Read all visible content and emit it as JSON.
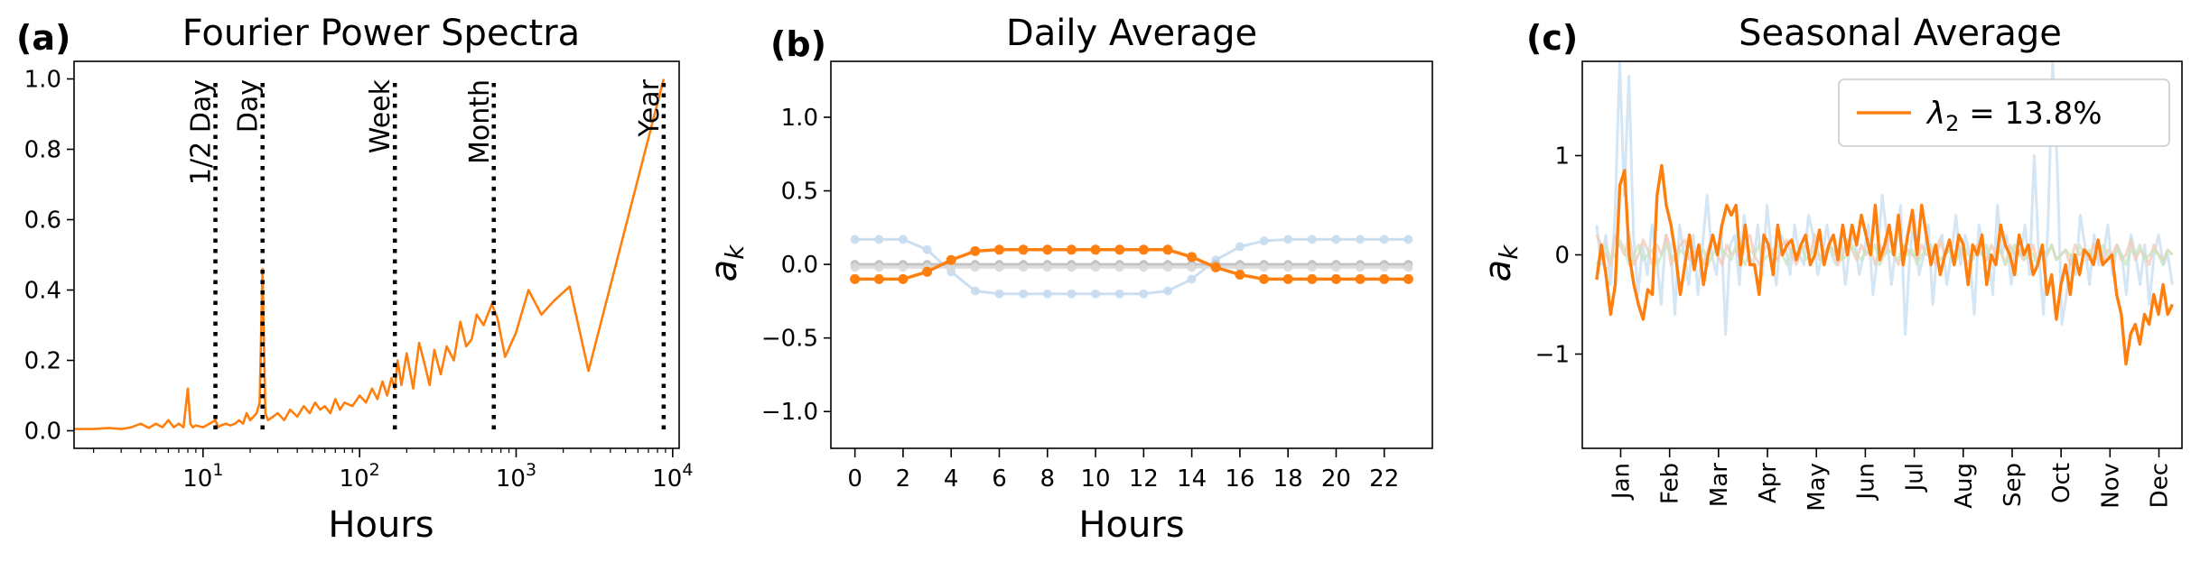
{
  "chart_data": [
    {
      "type": "line",
      "panel_label": "(a)",
      "title": "Fourier Power Spectra",
      "xlabel": "Hours",
      "ylabel": "",
      "xscale": "log",
      "xlim": [
        1.5,
        11000
      ],
      "ylim": [
        -0.05,
        1.05
      ],
      "xticks": [
        {
          "label": "10",
          "sup": "1"
        },
        {
          "label": "10",
          "sup": "2"
        },
        {
          "label": "10",
          "sup": "3"
        },
        {
          "label": "10",
          "sup": "4"
        }
      ],
      "yticks": [
        "0.0",
        "0.2",
        "0.4",
        "0.6",
        "0.8",
        "1.0"
      ],
      "color": "#ff7f0e",
      "vlines": [
        {
          "x": 12,
          "label": "1/2 Day"
        },
        {
          "x": 24,
          "label": "Day"
        },
        {
          "x": 168,
          "label": "Week"
        },
        {
          "x": 720,
          "label": "Month"
        },
        {
          "x": 8760,
          "label": "Year"
        }
      ],
      "series": [
        {
          "x": [
            1.5,
            2,
            2.5,
            3,
            3.5,
            4,
            4.5,
            5,
            5.5,
            6,
            6.5,
            7,
            7.5,
            8,
            8.3,
            8.6,
            9,
            10,
            11,
            12,
            12.5,
            13,
            14,
            15,
            16,
            17,
            18,
            19,
            20,
            21,
            22,
            23,
            24,
            25,
            26,
            28,
            30,
            33,
            36,
            40,
            44,
            48,
            52,
            56,
            60,
            65,
            70,
            75,
            80,
            90,
            100,
            110,
            120,
            130,
            140,
            150,
            160,
            168,
            175,
            185,
            200,
            220,
            240,
            260,
            280,
            300,
            330,
            360,
            400,
            440,
            480,
            520,
            560,
            620,
            700,
            760,
            850,
            1000,
            1200,
            1450,
            1750,
            2200,
            2900,
            8760
          ],
          "y": [
            0.005,
            0.005,
            0.008,
            0.005,
            0.01,
            0.02,
            0.008,
            0.02,
            0.01,
            0.03,
            0.01,
            0.02,
            0.01,
            0.12,
            0.02,
            0.01,
            0.015,
            0.01,
            0.02,
            0.03,
            0.01,
            0.015,
            0.02,
            0.015,
            0.02,
            0.03,
            0.02,
            0.05,
            0.03,
            0.04,
            0.05,
            0.08,
            0.46,
            0.05,
            0.03,
            0.04,
            0.05,
            0.03,
            0.06,
            0.04,
            0.07,
            0.05,
            0.08,
            0.06,
            0.07,
            0.05,
            0.09,
            0.06,
            0.08,
            0.07,
            0.1,
            0.08,
            0.12,
            0.09,
            0.14,
            0.1,
            0.15,
            0.12,
            0.2,
            0.13,
            0.22,
            0.12,
            0.25,
            0.19,
            0.13,
            0.23,
            0.16,
            0.24,
            0.2,
            0.31,
            0.24,
            0.26,
            0.33,
            0.3,
            0.36,
            0.32,
            0.21,
            0.28,
            0.4,
            0.33,
            0.37,
            0.41,
            0.17,
            1.0
          ]
        }
      ]
    },
    {
      "type": "line",
      "panel_label": "(b)",
      "title": "Daily Average",
      "xlabel": "Hours",
      "ylabel": "a_k",
      "xlim": [
        -1,
        24
      ],
      "ylim": [
        -1.25,
        1.38
      ],
      "xticks": [
        "0",
        "2",
        "4",
        "6",
        "8",
        "10",
        "12",
        "14",
        "16",
        "18",
        "20",
        "22"
      ],
      "yticks": [
        "1.0",
        "0.5",
        "0.0",
        "−0.5",
        "−1.0"
      ],
      "x": [
        0,
        1,
        2,
        3,
        4,
        5,
        6,
        7,
        8,
        9,
        10,
        11,
        12,
        13,
        14,
        15,
        16,
        17,
        18,
        19,
        20,
        21,
        22,
        23
      ],
      "series": [
        {
          "color": "#ff7f0e",
          "highlight": true,
          "values": [
            -0.1,
            -0.1,
            -0.1,
            -0.05,
            0.03,
            0.09,
            0.1,
            0.1,
            0.1,
            0.1,
            0.1,
            0.1,
            0.1,
            0.1,
            0.05,
            -0.02,
            -0.07,
            -0.1,
            -0.1,
            -0.1,
            -0.1,
            -0.1,
            -0.1,
            -0.1
          ]
        },
        {
          "color": "#c6dcef",
          "highlight": false,
          "values": [
            0.17,
            0.17,
            0.17,
            0.1,
            -0.05,
            -0.18,
            -0.2,
            -0.2,
            -0.2,
            -0.2,
            -0.2,
            -0.2,
            -0.2,
            -0.18,
            -0.1,
            0.03,
            0.12,
            0.16,
            0.17,
            0.17,
            0.17,
            0.17,
            0.17,
            0.17
          ]
        },
        {
          "color": "#bdbdbd",
          "highlight": false,
          "values": [
            0,
            0,
            0,
            0,
            0,
            0,
            0,
            0,
            0,
            0,
            0,
            0,
            0,
            0,
            0,
            0,
            0,
            0,
            0,
            0,
            0,
            0,
            0,
            0
          ]
        },
        {
          "color": "#d9d9d9",
          "highlight": false,
          "values": [
            -0.02,
            -0.02,
            -0.02,
            -0.02,
            -0.02,
            -0.02,
            -0.02,
            -0.02,
            -0.02,
            -0.02,
            -0.02,
            -0.02,
            -0.02,
            -0.02,
            -0.02,
            -0.02,
            -0.02,
            -0.02,
            -0.02,
            -0.02,
            -0.02,
            -0.02,
            -0.02,
            -0.02
          ]
        }
      ]
    },
    {
      "type": "line",
      "panel_label": "(c)",
      "title": "Seasonal Average",
      "xlabel": "",
      "ylabel": "a_k",
      "xlim": [
        0,
        125
      ],
      "ylim": [
        -1.95,
        1.95
      ],
      "xticks": [
        "Jan",
        "Feb",
        "Mar",
        "Apr",
        "May",
        "Jun",
        "Jul",
        "Aug",
        "Sep",
        "Oct",
        "Nov",
        "Dec"
      ],
      "yticks": [
        "1",
        "0",
        "−1"
      ],
      "legend": {
        "label_prefix": "λ",
        "label_sub": "2",
        "label_suffix": " = 13.8%",
        "position": "top-right"
      },
      "series": [
        {
          "name": "λ2 = 13.8%",
          "color": "#ff7f0e",
          "highlight": true,
          "values": [
            -0.25,
            0.1,
            -0.2,
            -0.6,
            -0.3,
            0.7,
            0.85,
            0.0,
            -0.3,
            -0.5,
            -0.65,
            -0.35,
            -0.4,
            0.6,
            0.9,
            0.5,
            0.3,
            0.0,
            -0.4,
            -0.1,
            0.2,
            -0.15,
            0.1,
            -0.3,
            0.0,
            0.2,
            0.0,
            0.3,
            0.5,
            0.4,
            0.5,
            -0.1,
            0.3,
            -0.1,
            -0.1,
            -0.4,
            0.2,
            0.1,
            -0.2,
            0.3,
            0.0,
            0.1,
            0.15,
            -0.05,
            0.1,
            0.2,
            -0.1,
            0.0,
            0.25,
            -0.1,
            0.1,
            0.2,
            -0.05,
            0.3,
            0.0,
            0.3,
            0.1,
            0.4,
            0.2,
            0.0,
            0.5,
            -0.05,
            0.1,
            0.3,
            0.0,
            0.4,
            -0.1,
            0.2,
            0.45,
            0.0,
            0.5,
            0.2,
            -0.1,
            0.1,
            -0.2,
            0.0,
            0.15,
            -0.1,
            0.2,
            0.1,
            -0.3,
            0.1,
            0.0,
            0.2,
            -0.3,
            0.0,
            -0.1,
            0.3,
            0.1,
            0.0,
            -0.2,
            0.2,
            0.0,
            0.1,
            -0.2,
            -0.1,
            0.1,
            -0.4,
            -0.2,
            -0.65,
            -0.3,
            -0.1,
            -0.4,
            0.0,
            -0.2,
            0.05,
            0.0,
            -0.1,
            0.15,
            -0.1,
            -0.05,
            0.0,
            -0.4,
            -0.6,
            -1.1,
            -0.8,
            -0.7,
            -0.9,
            -0.6,
            -0.7,
            -0.4,
            -0.6,
            -0.3,
            -0.6,
            -0.5
          ]
        },
        {
          "color": "#c6dcef",
          "highlight": false,
          "values": [
            0.3,
            -0.1,
            0.2,
            -0.3,
            0.4,
            1.95,
            0.6,
            1.8,
            0.2,
            -0.4,
            0.1,
            -0.2,
            0.3,
            0.0,
            -0.5,
            0.2,
            0.1,
            -0.6,
            0.3,
            0.0,
            -0.3,
            0.2,
            -0.4,
            0.1,
            0.6,
            0.0,
            -0.2,
            0.3,
            -0.8,
            0.1,
            0.2,
            -0.3,
            0.4,
            0.0,
            -0.1,
            0.3,
            -0.2,
            0.5,
            0.0,
            -0.3,
            0.2,
            0.1,
            -0.2,
            0.3,
            0.0,
            -0.1,
            0.4,
            0.2,
            -0.2,
            0.0,
            0.3,
            0.0,
            -0.1,
            0.2,
            -0.3,
            0.1,
            0.2,
            -0.2,
            0.0,
            0.3,
            -0.4,
            0.0,
            0.6,
            0.2,
            -0.3,
            0.1,
            0.5,
            -0.8,
            0.0,
            0.4,
            -0.2,
            0.0,
            0.3,
            -0.5,
            0.1,
            0.2,
            -0.3,
            0.0,
            0.4,
            -0.1,
            0.2,
            0.0,
            -0.6,
            0.3,
            0.1,
            0.0,
            -0.4,
            0.5,
            0.0,
            0.2,
            -0.3,
            0.1,
            0.0,
            0.3,
            -0.2,
            1.0,
            0.0,
            -0.6,
            0.3,
            1.95,
            0.9,
            -0.7,
            -0.4,
            0.0,
            -0.2,
            0.4,
            0.1,
            -0.3,
            0.2,
            -0.1,
            0.0,
            0.3,
            -0.2,
            0.1,
            0.0,
            -0.4,
            0.2,
            0.0,
            -0.3,
            0.1,
            -0.5,
            0.0,
            0.2,
            -0.1,
            0.0,
            -0.3
          ]
        },
        {
          "color": "#f4c7b6",
          "highlight": false,
          "values": [
            0.2,
            0.1,
            0.0,
            -0.1,
            0.2,
            0.1,
            0.0,
            0.2,
            -0.1,
            0.0,
            0.15,
            0.05,
            -0.1,
            0.1,
            0.0,
            0.2,
            -0.1,
            0.0,
            0.1,
            0.15,
            -0.05,
            0.0,
            0.1,
            -0.1,
            0.05,
            0.2,
            0.0,
            -0.1,
            0.1,
            0.0,
            0.05,
            -0.05,
            0.1,
            0.2,
            0.0,
            -0.1,
            0.05,
            0.1,
            0.0,
            -0.05,
            0.1,
            0.15,
            0.0,
            -0.1,
            0.05,
            0.1,
            0.0,
            0.2,
            -0.05,
            0.0,
            0.1,
            0.05,
            -0.1,
            0.0,
            0.15,
            0.05,
            -0.05,
            0.1,
            0.0,
            0.05,
            -0.1,
            0.1,
            0.0,
            0.2,
            0.0,
            -0.1,
            0.1,
            0.05,
            0.0,
            -0.05,
            0.1,
            0.0,
            0.05,
            -0.1,
            0.15,
            0.0,
            0.05,
            -0.05,
            0.1,
            0.0,
            -0.1,
            0.05,
            0.1,
            0.0,
            -0.05,
            0.1,
            0.0,
            0.05,
            -0.1,
            0.1,
            0.0,
            0.05,
            -0.05,
            0.0,
            0.1,
            -0.1,
            0.05,
            0.0,
            0.1,
            -0.05,
            0.0,
            0.05,
            -0.1,
            0.1,
            0.0,
            0.05,
            -0.05,
            0.1,
            0.0,
            -0.1,
            0.05,
            0.0,
            0.1,
            -0.05,
            0.0,
            0.15,
            -0.05,
            0.05,
            0.0,
            -0.1,
            0.1,
            0.0,
            -0.05,
            0.05,
            0.0
          ]
        },
        {
          "color": "#c7e5c0",
          "highlight": false,
          "values": [
            -0.1,
            0.0,
            0.1,
            -0.05,
            0.0,
            0.15,
            0.05,
            -0.1,
            0.0,
            0.1,
            -0.05,
            0.0,
            0.05,
            -0.1,
            0.0,
            0.1,
            0.0,
            -0.05,
            0.05,
            0.0,
            0.1,
            -0.05,
            0.0,
            0.05,
            -0.1,
            0.0,
            0.1,
            0.05,
            0.0,
            -0.05,
            0.1,
            0.0,
            -0.1,
            0.05,
            0.0,
            0.1,
            -0.05,
            0.0,
            0.05,
            0.1,
            0.0,
            -0.1,
            0.05,
            0.0,
            0.1,
            -0.05,
            0.0,
            0.05,
            0.0,
            -0.1,
            0.1,
            0.0,
            0.05,
            -0.05,
            0.0,
            0.1,
            0.0,
            -0.05,
            0.05,
            0.0,
            0.1,
            -0.1,
            0.0,
            0.05,
            0.0,
            -0.05,
            0.1,
            0.0,
            0.05,
            -0.1,
            0.0,
            0.05,
            0.1,
            0.0,
            -0.05,
            0.0,
            0.05,
            -0.1,
            0.0,
            0.1,
            0.0,
            -0.05,
            0.05,
            0.0,
            0.1,
            -0.05,
            0.0,
            0.05,
            -0.1,
            0.0,
            0.1,
            0.0,
            -0.05,
            0.05,
            0.0,
            -0.1,
            0.05,
            0.0,
            0.1,
            -0.05,
            0.0,
            0.05,
            0.0,
            -0.1,
            0.1,
            0.0,
            0.05,
            -0.05,
            0.0,
            0.1,
            0.0,
            -0.05,
            0.05,
            0.0,
            -0.1,
            0.05,
            0.0,
            0.1,
            -0.05,
            0.0,
            0.05,
            0.0,
            -0.1,
            0.05,
            0.0
          ]
        }
      ]
    }
  ]
}
